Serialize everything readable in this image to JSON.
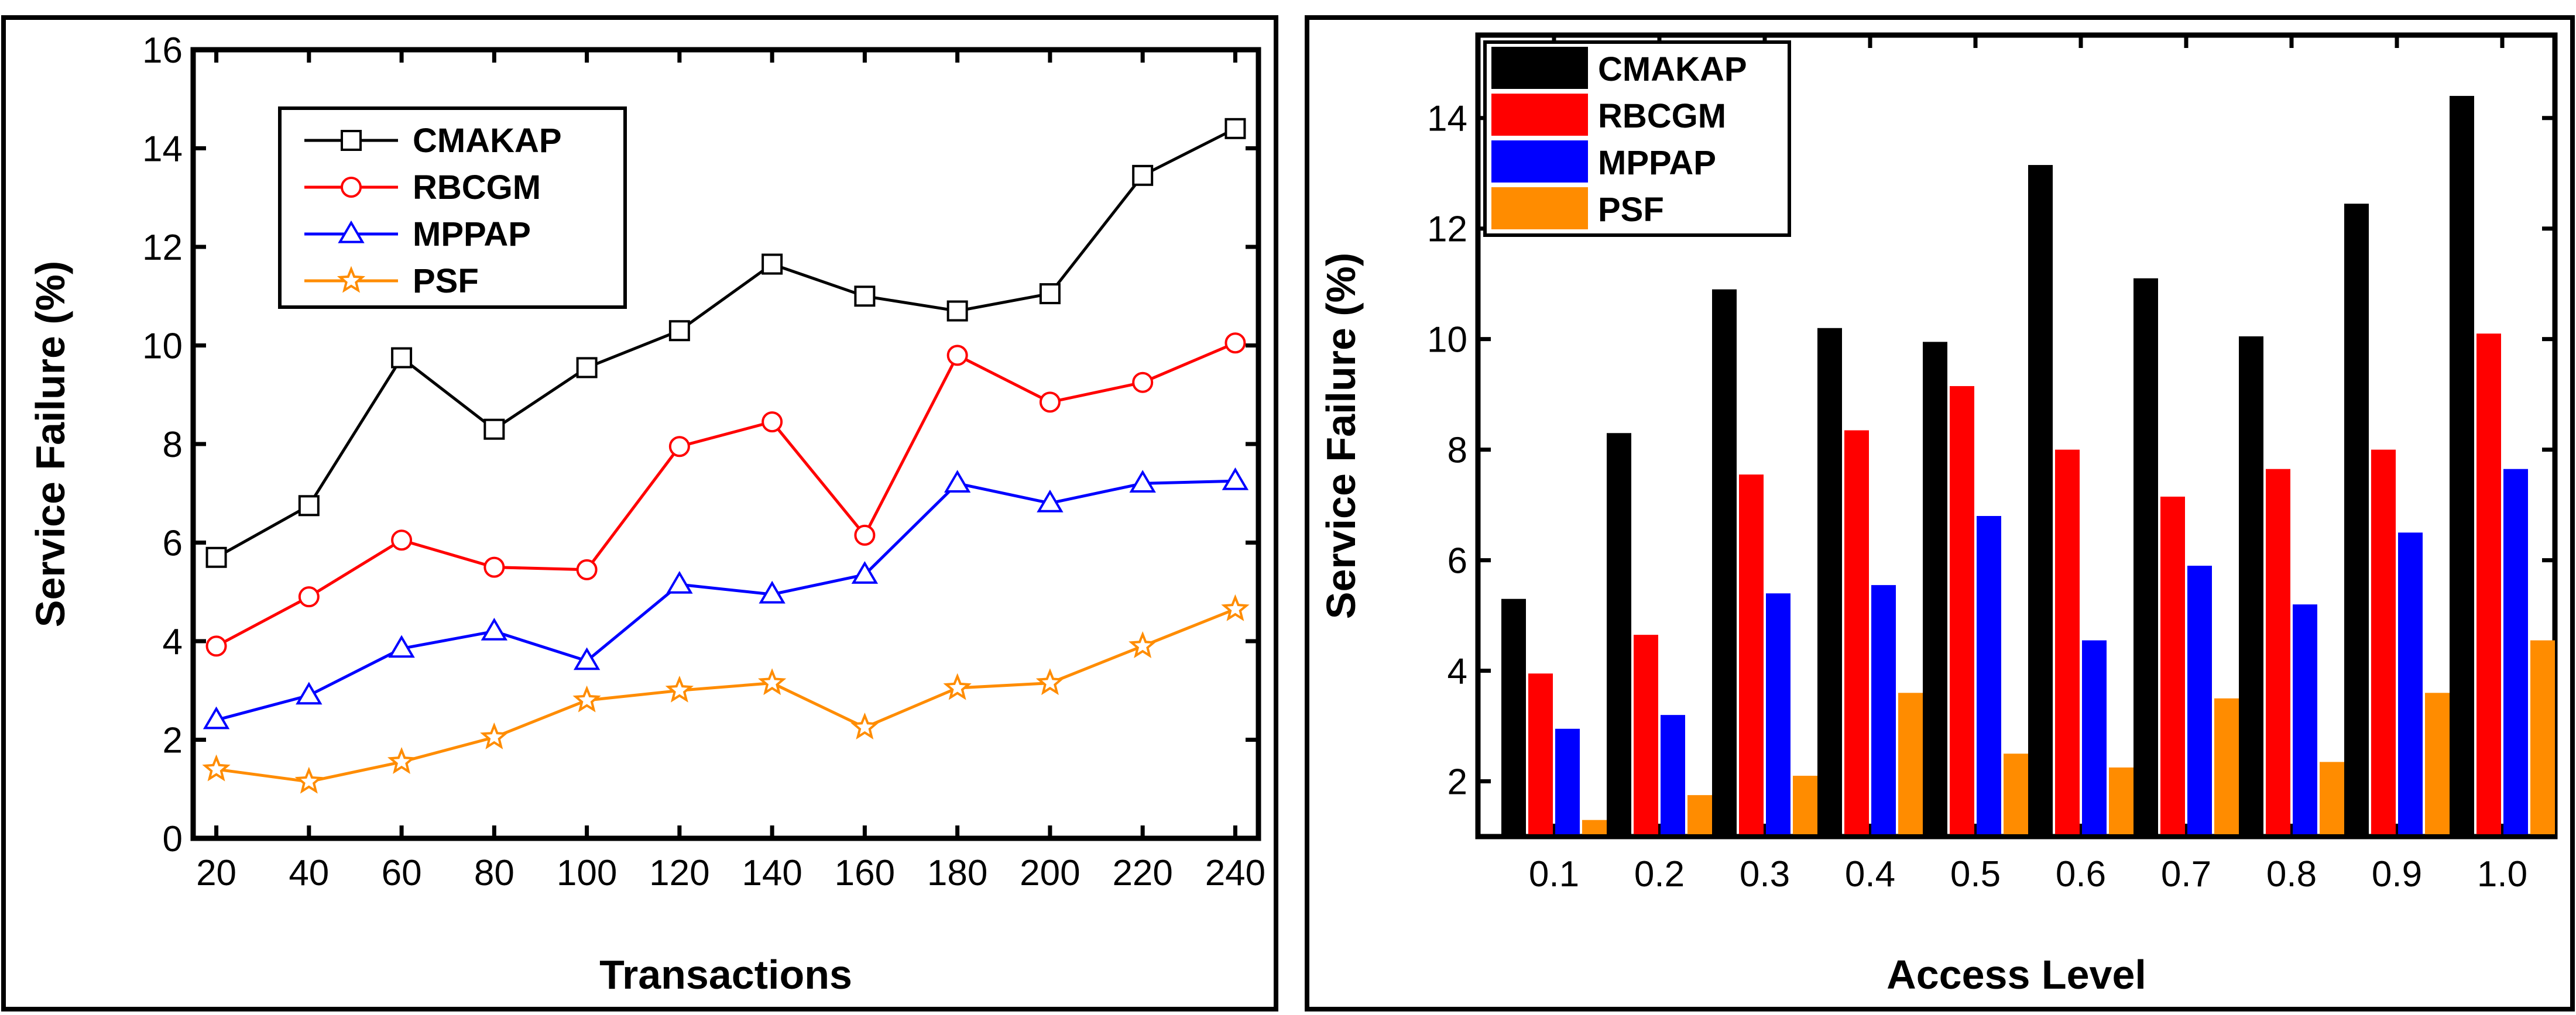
{
  "chart_data": [
    {
      "type": "line",
      "title": "",
      "xlabel": "Transactions",
      "ylabel": "Service Failure (%)",
      "x": [
        20,
        40,
        60,
        80,
        100,
        120,
        140,
        160,
        180,
        200,
        220,
        240
      ],
      "xticks": [
        "20",
        "40",
        "60",
        "80",
        "100",
        "120",
        "140",
        "160",
        "180",
        "200",
        "220",
        "240"
      ],
      "yticks": [
        "0",
        "2",
        "4",
        "6",
        "8",
        "10",
        "12",
        "14",
        "16"
      ],
      "ylim": [
        0,
        16
      ],
      "legend_position": "top-left",
      "series": [
        {
          "name": "CMAKAP",
          "color": "#000000",
          "marker": "square",
          "values": [
            5.7,
            6.75,
            9.75,
            8.3,
            9.55,
            10.3,
            11.65,
            11.0,
            10.7,
            11.05,
            13.45,
            14.4
          ]
        },
        {
          "name": "RBCGM",
          "color": "#ff0000",
          "marker": "circle",
          "values": [
            3.9,
            4.9,
            6.05,
            5.5,
            5.45,
            7.95,
            8.45,
            6.15,
            9.8,
            8.85,
            9.25,
            10.05
          ]
        },
        {
          "name": "MPPAP",
          "color": "#0000ff",
          "marker": "triangle",
          "values": [
            2.4,
            2.9,
            3.85,
            4.2,
            3.6,
            5.15,
            4.95,
            5.35,
            7.2,
            6.8,
            7.2,
            7.25
          ]
        },
        {
          "name": "PSF",
          "color": "#ff8c00",
          "marker": "star",
          "values": [
            1.4,
            1.15,
            1.55,
            2.05,
            2.8,
            3.0,
            3.15,
            2.25,
            3.05,
            3.15,
            3.9,
            4.65
          ]
        }
      ]
    },
    {
      "type": "bar",
      "title": "",
      "xlabel": "Access Level",
      "ylabel": "Service Failure (%)",
      "categories": [
        "0.1",
        "0.2",
        "0.3",
        "0.4",
        "0.5",
        "0.6",
        "0.7",
        "0.8",
        "0.9",
        "1.0"
      ],
      "yticks": [
        "2",
        "4",
        "6",
        "8",
        "10",
        "12",
        "14"
      ],
      "ylim": [
        1.0,
        15.5
      ],
      "legend_position": "top-left",
      "series": [
        {
          "name": "CMAKAP",
          "color": "#000000",
          "values": [
            5.3,
            8.3,
            10.9,
            10.2,
            9.95,
            13.15,
            11.1,
            10.05,
            12.45,
            14.4
          ]
        },
        {
          "name": "RBCGM",
          "color": "#ff0000",
          "values": [
            3.95,
            4.65,
            7.55,
            8.35,
            9.15,
            8.0,
            7.15,
            7.65,
            8.0,
            10.1
          ]
        },
        {
          "name": "MPPAP",
          "color": "#0000ff",
          "values": [
            2.95,
            3.2,
            5.4,
            5.55,
            6.8,
            4.55,
            5.9,
            5.2,
            6.5,
            7.65
          ]
        },
        {
          "name": "PSF",
          "color": "#ff8c00",
          "values": [
            1.3,
            1.75,
            2.1,
            3.6,
            2.5,
            2.25,
            3.5,
            2.35,
            3.6,
            4.55
          ]
        }
      ]
    }
  ]
}
